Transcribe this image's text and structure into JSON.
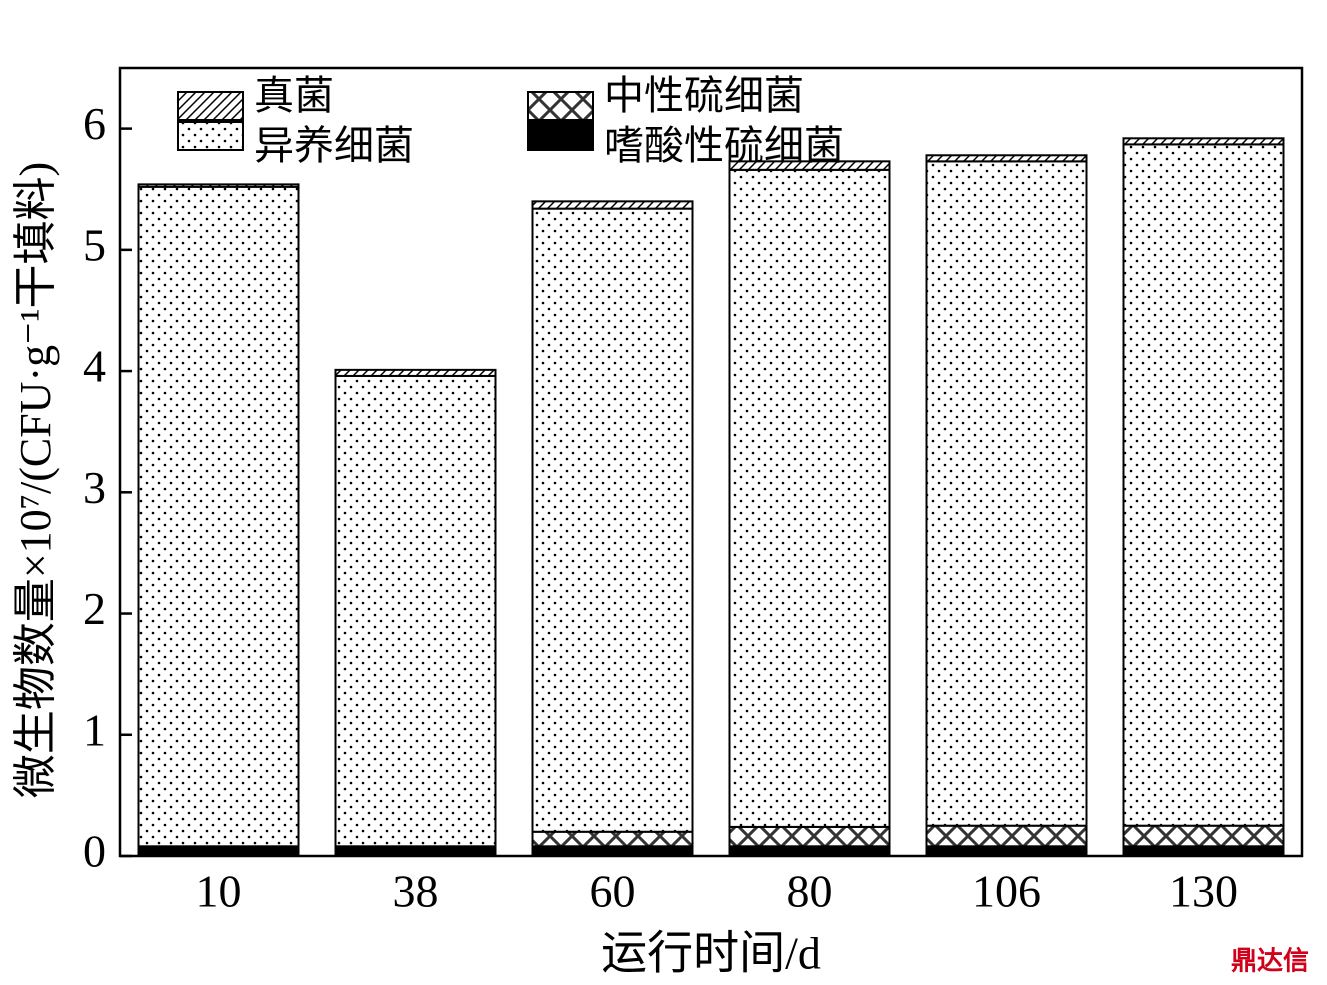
{
  "chart_data": {
    "type": "stacked_bar",
    "x_label": "运行时间/d",
    "y_label": "微生物数量×10⁷/(CFU·g⁻¹干填料)",
    "categories": [
      "10",
      "38",
      "60",
      "80",
      "106",
      "130"
    ],
    "series": [
      {
        "name": "嗜酸性硫细菌",
        "color": "#000000",
        "pattern": "solid",
        "values": [
          0.08,
          0.08,
          0.08,
          0.08,
          0.08,
          0.08
        ]
      },
      {
        "name": "中性硫细菌",
        "color": "#000000",
        "pattern": "crosshatch",
        "values": [
          0,
          0,
          0.12,
          0.16,
          0.17,
          0.17
        ]
      },
      {
        "name": "异养细菌",
        "color": "#000000",
        "pattern": "dots",
        "values": [
          5.44,
          3.88,
          5.14,
          5.42,
          5.48,
          5.62
        ]
      },
      {
        "name": "真菌",
        "color": "#000000",
        "pattern": "diagonal",
        "values": [
          0.02,
          0.05,
          0.06,
          0.07,
          0.05,
          0.05
        ]
      }
    ],
    "ylim": [
      0,
      6.5
    ],
    "yticks": [
      0,
      1,
      2,
      3,
      4,
      5,
      6
    ],
    "watermark": "鼎达信"
  }
}
